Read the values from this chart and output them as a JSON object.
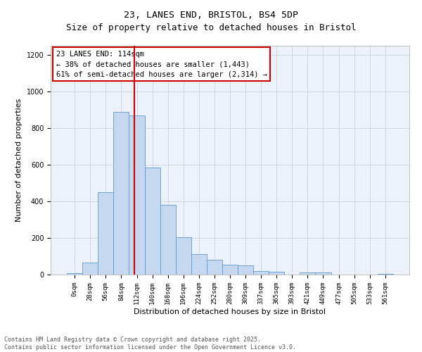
{
  "title": "23, LANES END, BRISTOL, BS4 5DP",
  "subtitle": "Size of property relative to detached houses in Bristol",
  "xlabel": "Distribution of detached houses by size in Bristol",
  "ylabel": "Number of detached properties",
  "bin_labels": [
    "0sqm",
    "28sqm",
    "56sqm",
    "84sqm",
    "112sqm",
    "140sqm",
    "168sqm",
    "196sqm",
    "224sqm",
    "252sqm",
    "280sqm",
    "309sqm",
    "337sqm",
    "365sqm",
    "393sqm",
    "421sqm",
    "449sqm",
    "477sqm",
    "505sqm",
    "533sqm",
    "561sqm"
  ],
  "bar_values": [
    8,
    67,
    450,
    890,
    870,
    585,
    380,
    205,
    110,
    80,
    55,
    50,
    20,
    15,
    0,
    12,
    10,
    0,
    0,
    0,
    5
  ],
  "bar_color": "#c5d8f0",
  "bar_edgecolor": "#5a9bd5",
  "bar_width": 1.0,
  "vline_x": 3.86,
  "vline_color": "#cc0000",
  "annotation_box_text": "23 LANES END: 114sqm\n← 38% of detached houses are smaller (1,443)\n61% of semi-detached houses are larger (2,314) →",
  "ylim": [
    0,
    1250
  ],
  "yticks": [
    0,
    200,
    400,
    600,
    800,
    1000,
    1200
  ],
  "grid_color": "#d0d8e8",
  "background_color": "#edf2fa",
  "footer_text": "Contains HM Land Registry data © Crown copyright and database right 2025.\nContains public sector information licensed under the Open Government Licence v3.0.",
  "title_fontsize": 9.5,
  "axis_label_fontsize": 8,
  "tick_fontsize": 6.5,
  "annotation_fontsize": 7.5,
  "footer_fontsize": 6.0
}
